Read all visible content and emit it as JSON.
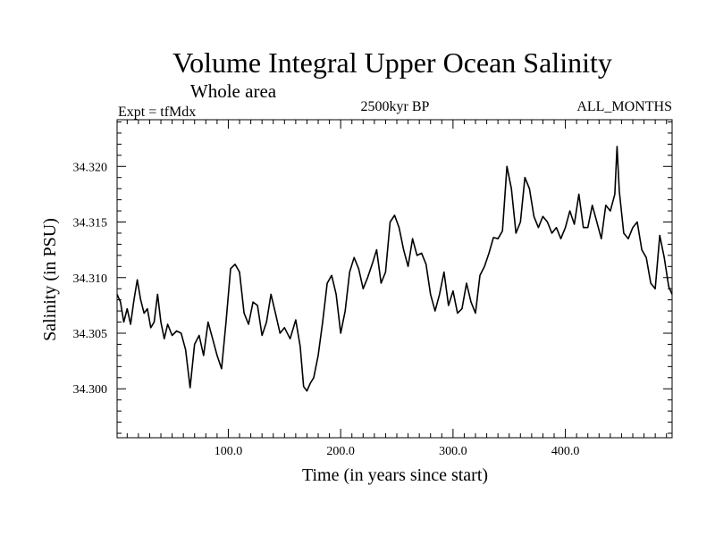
{
  "header": {
    "title": "Volume Integral Upper Ocean Salinity",
    "subtitle": "Whole area",
    "expt": "Expt = tfMdx",
    "period": "2500kyr BP",
    "months": "ALL_MONTHS"
  },
  "chart_data": {
    "type": "line",
    "title": "Volume Integral Upper Ocean Salinity",
    "subtitle": "Whole area",
    "xlabel": "Time (in years since start)",
    "ylabel": "Salinity (in PSU)",
    "xlim": [
      1,
      495
    ],
    "ylim": [
      34.2956,
      34.3242
    ],
    "x_ticks": [
      100,
      200,
      300,
      400
    ],
    "x_tick_labels": [
      "100.0",
      "200.0",
      "300.0",
      "400.0"
    ],
    "y_ticks": [
      34.3,
      34.305,
      34.31,
      34.315,
      34.32
    ],
    "y_tick_labels": [
      "34.300",
      "34.305",
      "34.310",
      "34.315",
      "34.320"
    ],
    "grid": false,
    "line_color": "#000000",
    "series": [
      {
        "name": "salinity",
        "x": [
          1,
          4,
          7,
          10,
          13,
          16,
          19,
          22,
          25,
          28,
          31,
          34,
          37,
          40,
          43,
          46,
          50,
          54,
          58,
          62,
          66,
          70,
          74,
          78,
          82,
          86,
          90,
          94,
          98,
          102,
          106,
          110,
          114,
          118,
          122,
          126,
          130,
          134,
          138,
          142,
          146,
          150,
          155,
          160,
          164,
          167,
          170,
          173,
          176,
          180,
          184,
          188,
          192,
          196,
          200,
          204,
          208,
          212,
          216,
          220,
          224,
          228,
          232,
          236,
          240,
          244,
          248,
          252,
          256,
          260,
          264,
          268,
          272,
          276,
          280,
          284,
          288,
          292,
          296,
          300,
          304,
          308,
          312,
          316,
          320,
          324,
          328,
          332,
          336,
          340,
          344,
          348,
          352,
          356,
          360,
          364,
          368,
          372,
          376,
          380,
          384,
          388,
          392,
          396,
          400,
          404,
          408,
          412,
          416,
          420,
          424,
          428,
          432,
          436,
          440,
          444,
          446,
          448,
          452,
          456,
          460,
          464,
          468,
          472,
          476,
          480,
          484,
          488,
          492,
          495
        ],
        "values": [
          34.3085,
          34.3078,
          34.306,
          34.3072,
          34.3058,
          34.308,
          34.3098,
          34.308,
          34.3068,
          34.3072,
          34.3055,
          34.306,
          34.3085,
          34.306,
          34.3045,
          34.3058,
          34.3048,
          34.3052,
          34.305,
          34.3035,
          34.3001,
          34.304,
          34.3048,
          34.303,
          34.306,
          34.3045,
          34.303,
          34.3018,
          34.306,
          34.3108,
          34.3112,
          34.3105,
          34.3068,
          34.3058,
          34.3078,
          34.3075,
          34.3048,
          34.306,
          34.3085,
          34.3068,
          34.305,
          34.3055,
          34.3045,
          34.3062,
          34.3038,
          34.3002,
          34.2998,
          34.3005,
          34.301,
          34.303,
          34.306,
          34.3095,
          34.3102,
          34.3085,
          34.305,
          34.307,
          34.3105,
          34.3118,
          34.3108,
          34.309,
          34.31,
          34.3112,
          34.3125,
          34.3095,
          34.3105,
          34.315,
          34.3156,
          34.3145,
          34.3125,
          34.311,
          34.3135,
          34.312,
          34.3122,
          34.3112,
          34.3085,
          34.307,
          34.3085,
          34.3105,
          34.3075,
          34.3088,
          34.3068,
          34.3072,
          34.3095,
          34.3078,
          34.3068,
          34.3102,
          34.311,
          34.3122,
          34.3136,
          34.3135,
          34.3142,
          34.32,
          34.318,
          34.314,
          34.315,
          34.319,
          34.318,
          34.3155,
          34.3145,
          34.3155,
          34.315,
          34.314,
          34.3145,
          34.3135,
          34.3145,
          34.316,
          34.3148,
          34.3175,
          34.3145,
          34.3145,
          34.3165,
          34.315,
          34.3135,
          34.3165,
          34.316,
          34.3175,
          34.3218,
          34.3178,
          34.314,
          34.3135,
          34.3145,
          34.315,
          34.3125,
          34.3118,
          34.3095,
          34.309,
          34.3138,
          34.3118,
          34.3092,
          34.3085
        ]
      }
    ]
  }
}
